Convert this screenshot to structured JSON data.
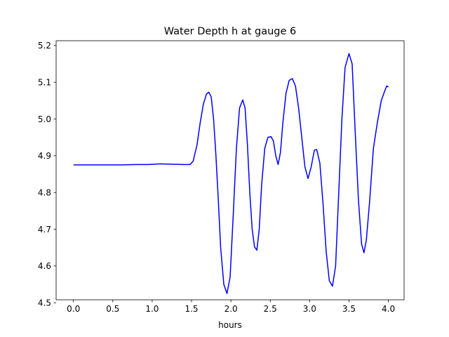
{
  "chart_data": {
    "type": "line",
    "title": "Water Depth h at gauge 6",
    "xlabel": "hours",
    "ylabel": "",
    "xlim": [
      -0.22,
      4.2
    ],
    "ylim": [
      4.508,
      5.213
    ],
    "xticks": [
      0.0,
      0.5,
      1.0,
      1.5,
      2.0,
      2.5,
      3.0,
      3.5,
      4.0
    ],
    "xtick_labels": [
      "0.0",
      "0.5",
      "1.0",
      "1.5",
      "2.0",
      "2.5",
      "3.0",
      "3.5",
      "4.0"
    ],
    "yticks": [
      4.5,
      4.6,
      4.7,
      4.8,
      4.9,
      5.0,
      5.1,
      5.2
    ],
    "ytick_labels": [
      "4.5",
      "4.6",
      "4.7",
      "4.8",
      "4.9",
      "5.0",
      "5.1",
      "5.2"
    ],
    "grid": false,
    "series": [
      {
        "color": "#0000ff",
        "points": [
          [
            0.0,
            4.875
          ],
          [
            0.2,
            4.875
          ],
          [
            0.4,
            4.875
          ],
          [
            0.6,
            4.875
          ],
          [
            0.8,
            4.876
          ],
          [
            0.95,
            4.876
          ],
          [
            1.1,
            4.878
          ],
          [
            1.25,
            4.877
          ],
          [
            1.4,
            4.876
          ],
          [
            1.48,
            4.876
          ],
          [
            1.52,
            4.885
          ],
          [
            1.57,
            4.93
          ],
          [
            1.61,
            4.99
          ],
          [
            1.65,
            5.04
          ],
          [
            1.69,
            5.068
          ],
          [
            1.72,
            5.073
          ],
          [
            1.75,
            5.06
          ],
          [
            1.78,
            5.0
          ],
          [
            1.81,
            4.9
          ],
          [
            1.84,
            4.78
          ],
          [
            1.87,
            4.65
          ],
          [
            1.91,
            4.55
          ],
          [
            1.95,
            4.525
          ],
          [
            1.99,
            4.57
          ],
          [
            2.03,
            4.74
          ],
          [
            2.07,
            4.92
          ],
          [
            2.11,
            5.03
          ],
          [
            2.15,
            5.052
          ],
          [
            2.18,
            5.03
          ],
          [
            2.21,
            4.93
          ],
          [
            2.24,
            4.8
          ],
          [
            2.27,
            4.7
          ],
          [
            2.3,
            4.652
          ],
          [
            2.33,
            4.643
          ],
          [
            2.36,
            4.7
          ],
          [
            2.39,
            4.82
          ],
          [
            2.43,
            4.92
          ],
          [
            2.47,
            4.95
          ],
          [
            2.51,
            4.952
          ],
          [
            2.54,
            4.94
          ],
          [
            2.57,
            4.9
          ],
          [
            2.6,
            4.876
          ],
          [
            2.63,
            4.91
          ],
          [
            2.66,
            4.99
          ],
          [
            2.7,
            5.07
          ],
          [
            2.74,
            5.105
          ],
          [
            2.78,
            5.11
          ],
          [
            2.82,
            5.09
          ],
          [
            2.86,
            5.03
          ],
          [
            2.9,
            4.95
          ],
          [
            2.94,
            4.87
          ],
          [
            2.98,
            4.838
          ],
          [
            3.02,
            4.87
          ],
          [
            3.06,
            4.915
          ],
          [
            3.09,
            4.917
          ],
          [
            3.13,
            4.88
          ],
          [
            3.17,
            4.77
          ],
          [
            3.21,
            4.64
          ],
          [
            3.25,
            4.56
          ],
          [
            3.29,
            4.545
          ],
          [
            3.33,
            4.6
          ],
          [
            3.37,
            4.8
          ],
          [
            3.41,
            5.0
          ],
          [
            3.45,
            5.14
          ],
          [
            3.5,
            5.178
          ],
          [
            3.54,
            5.15
          ],
          [
            3.58,
            4.96
          ],
          [
            3.62,
            4.78
          ],
          [
            3.66,
            4.66
          ],
          [
            3.69,
            4.636
          ],
          [
            3.72,
            4.67
          ],
          [
            3.76,
            4.77
          ],
          [
            3.81,
            4.92
          ],
          [
            3.86,
            4.99
          ],
          [
            3.91,
            5.05
          ],
          [
            3.96,
            5.08
          ],
          [
            3.98,
            5.09
          ],
          [
            4.0,
            5.087
          ]
        ]
      }
    ]
  }
}
